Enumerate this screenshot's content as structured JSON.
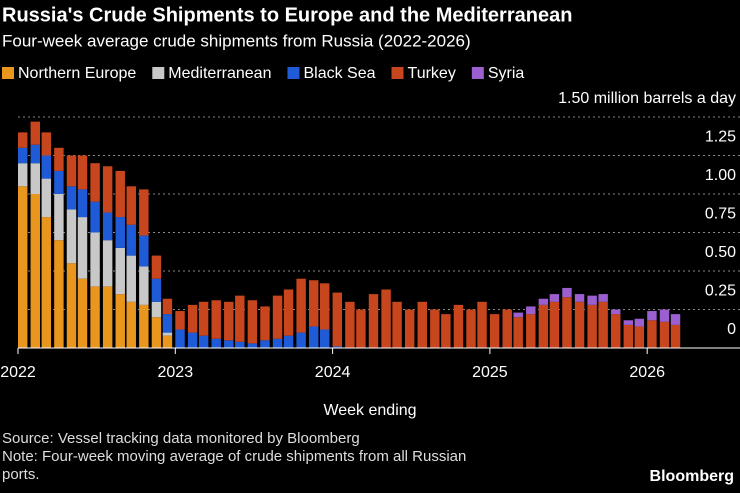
{
  "chart_data": {
    "type": "bar",
    "stacked": true,
    "title": "Russia's Crude Shipments to Europe and the Mediterranean",
    "subtitle": "Four-week average crude shipments from Russia (2022-2026)",
    "x_label": "Week ending",
    "source": "Source: Vessel tracking data monitored by Bloomberg",
    "note": "Note: Four-week moving average of crude shipments from all Russian ports.",
    "x": [
      2022,
      2022.08,
      2022.15,
      2022.23,
      2022.31,
      2022.38,
      2022.46,
      2022.54,
      2022.62,
      2022.69,
      2022.77,
      2022.85,
      2022.92,
      2023,
      2023.08,
      2023.15,
      2023.23,
      2023.31,
      2023.38,
      2023.46,
      2023.54,
      2023.62,
      2023.69,
      2023.77,
      2023.85,
      2023.92,
      2024,
      2024.08,
      2024.15,
      2024.23,
      2024.31,
      2024.38,
      2024.46,
      2024.54,
      2024.62,
      2024.69,
      2024.77,
      2024.85,
      2024.92,
      2025,
      2025.08,
      2025.15,
      2025.23,
      2025.31,
      2025.38,
      2025.46,
      2025.54,
      2025.62,
      2025.69,
      2025.77,
      2025.85,
      2025.92,
      2026,
      2026.08,
      2026.15
    ],
    "xlim": [
      2022,
      2026.59
    ],
    "xticks": [
      2022,
      2023,
      2024,
      2025,
      2026
    ],
    "ylim": [
      0,
      1.7
    ],
    "yticks": [
      0,
      {
        "value": 0.25,
        "label": "0.25"
      },
      {
        "value": 0.5,
        "label": "0.50"
      },
      {
        "value": 0.75,
        "label": "0.75"
      },
      {
        "value": 1,
        "label": "1.00"
      },
      {
        "value": 1.25,
        "label": "1.25"
      },
      {
        "value": 1.5,
        "label": "1.50 million barrels a day"
      }
    ],
    "grid": true,
    "series": [
      {
        "name": "Northern Europe",
        "color": "#e8961e",
        "values": [
          1.05,
          1.0,
          0.85,
          0.7,
          0.55,
          0.45,
          0.4,
          0.4,
          0.35,
          0.3,
          0.28,
          0.2,
          0.08,
          0,
          0,
          0,
          0,
          0,
          0,
          0,
          0,
          0,
          0,
          0,
          0,
          0,
          0,
          0,
          0,
          0,
          0,
          0,
          0,
          0,
          0,
          0,
          0,
          0,
          0,
          0,
          0,
          0,
          0,
          0,
          0,
          0,
          0,
          0,
          0,
          0,
          0,
          0,
          0,
          0,
          0
        ]
      },
      {
        "name": "Mediterranean",
        "color": "#c8c8c8",
        "values": [
          0.15,
          0.2,
          0.25,
          0.3,
          0.35,
          0.4,
          0.35,
          0.3,
          0.3,
          0.3,
          0.25,
          0.1,
          0.02,
          0,
          0,
          0,
          0,
          0,
          0,
          0,
          0,
          0,
          0,
          0,
          0,
          0,
          0,
          0,
          0,
          0,
          0,
          0,
          0,
          0,
          0,
          0,
          0,
          0,
          0,
          0,
          0,
          0,
          0,
          0,
          0,
          0,
          0,
          0,
          0,
          0,
          0,
          0,
          0,
          0,
          0
        ]
      },
      {
        "name": "Black Sea",
        "color": "#1f5bd6",
        "values": [
          0.1,
          0.12,
          0.15,
          0.15,
          0.15,
          0.18,
          0.2,
          0.18,
          0.2,
          0.2,
          0.2,
          0.15,
          0.12,
          0.12,
          0.1,
          0.08,
          0.06,
          0.05,
          0.04,
          0.03,
          0.05,
          0.06,
          0.08,
          0.1,
          0.14,
          0.12,
          0.01,
          0,
          0,
          0,
          0,
          0,
          0,
          0,
          0,
          0,
          0,
          0,
          0,
          0,
          0,
          0,
          0,
          0,
          0,
          0,
          0,
          0,
          0,
          0,
          0,
          0,
          0,
          0,
          0
        ]
      },
      {
        "name": "Turkey",
        "color": "#c8461e",
        "values": [
          0.1,
          0.15,
          0.15,
          0.15,
          0.2,
          0.22,
          0.25,
          0.3,
          0.3,
          0.25,
          0.3,
          0.15,
          0.1,
          0.12,
          0.18,
          0.22,
          0.25,
          0.25,
          0.3,
          0.28,
          0.22,
          0.28,
          0.3,
          0.35,
          0.3,
          0.3,
          0.35,
          0.3,
          0.25,
          0.35,
          0.38,
          0.3,
          0.25,
          0.3,
          0.25,
          0.22,
          0.28,
          0.25,
          0.3,
          0.22,
          0.25,
          0.2,
          0.22,
          0.28,
          0.3,
          0.33,
          0.3,
          0.28,
          0.3,
          0.22,
          0.15,
          0.14,
          0.18,
          0.17,
          0.15
        ]
      },
      {
        "name": "Syria",
        "color": "#9b5fd0",
        "values": [
          0,
          0,
          0,
          0,
          0,
          0,
          0,
          0,
          0,
          0,
          0,
          0,
          0,
          0,
          0,
          0,
          0,
          0,
          0,
          0,
          0,
          0,
          0,
          0,
          0,
          0,
          0,
          0,
          0,
          0,
          0,
          0,
          0,
          0,
          0,
          0,
          0,
          0,
          0,
          0,
          0,
          0.03,
          0.05,
          0.04,
          0.05,
          0.06,
          0.05,
          0.06,
          0.05,
          0.03,
          0.03,
          0.05,
          0.06,
          0.08,
          0.07
        ]
      }
    ]
  },
  "brand": "Bloomberg"
}
